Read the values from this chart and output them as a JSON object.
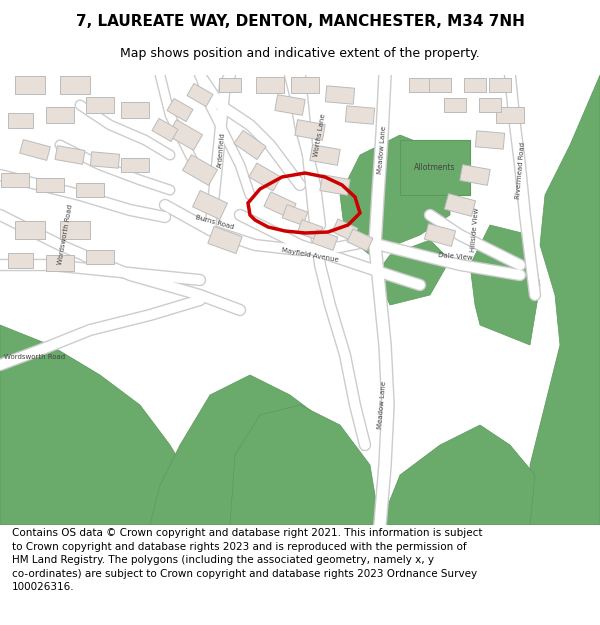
{
  "title_line1": "7, LAUREATE WAY, DENTON, MANCHESTER, M34 7NH",
  "title_line2": "Map shows position and indicative extent of the property.",
  "footer_lines": [
    "Contains OS data © Crown copyright and database right 2021. This information is subject",
    "to Crown copyright and database rights 2023 and is reproduced with the permission of",
    "HM Land Registry. The polygons (including the associated geometry, namely x, y",
    "co-ordinates) are subject to Crown copyright and database rights 2023 Ordnance Survey",
    "100026316."
  ],
  "background_color": "#ffffff",
  "map_bg_color": "#f2ede8",
  "road_color": "#ffffff",
  "road_outline_color": "#cccccc",
  "building_fill": "#e8e0d8",
  "building_outline": "#bbbbbb",
  "green_fill": "#6aaa6a",
  "green_outline": "#5a9a5a",
  "highlight_outline": "#cc0000",
  "highlight_lw": 2.5,
  "title_fontsize": 11,
  "subtitle_fontsize": 9,
  "footer_fontsize": 7.5
}
